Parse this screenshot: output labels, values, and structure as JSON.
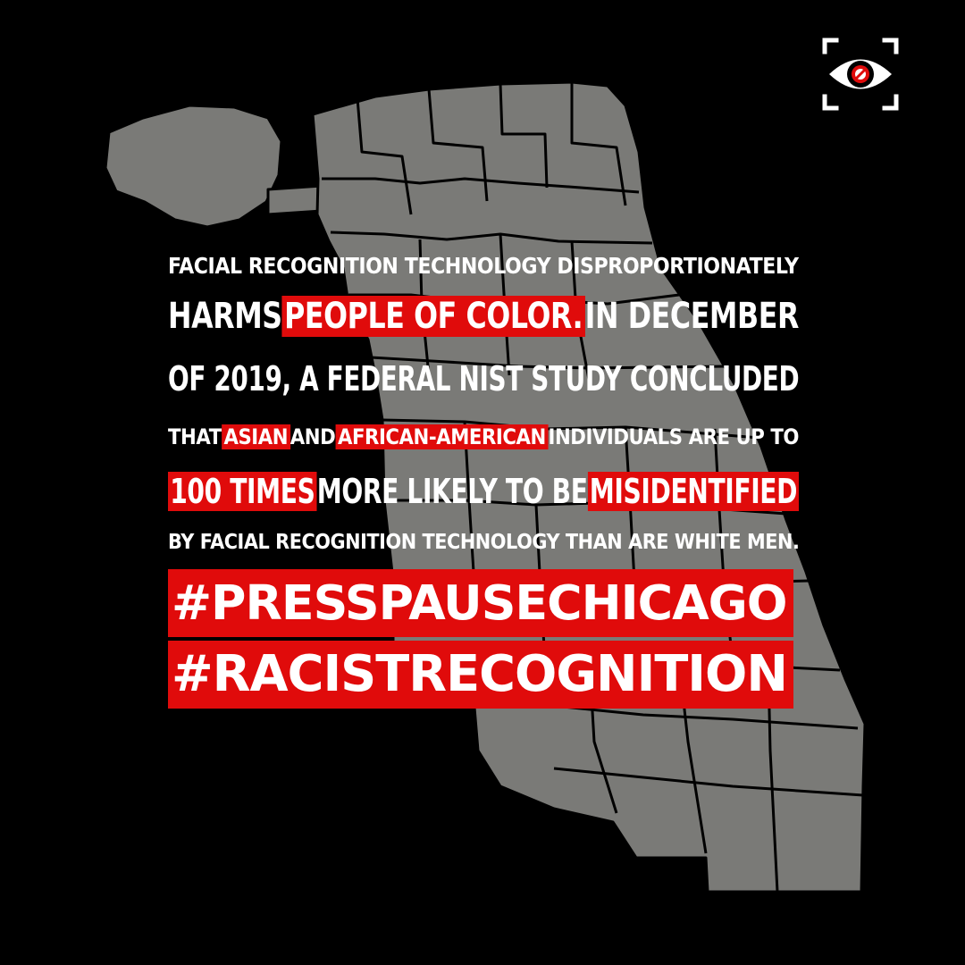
{
  "logo": {
    "icon": "blocked-eye-icon",
    "colors": {
      "frame": "#ffffff",
      "pupil": "#e00b0b"
    }
  },
  "map": {
    "fill": "#7a7a77",
    "stroke": "#000000"
  },
  "statement": {
    "l1": {
      "a": "FACIAL RECOGNITION TECHNOLOGY DISPROPORTIONATELY"
    },
    "l2": {
      "a": "HARMS",
      "hl": "PEOPLE OF COLOR.",
      "b": "IN DECEMBER"
    },
    "l3": {
      "a": "OF 2019, A FEDERAL NIST STUDY CONCLUDED"
    },
    "l4": {
      "a": "THAT",
      "hl1": "ASIAN",
      "b": "AND",
      "hl2": "AFRICAN-AMERICAN",
      "c": "INDIVIDUALS ARE UP TO"
    },
    "l5": {
      "hl1": "100 TIMES",
      "a": "MORE LIKELY TO BE",
      "hl2": "MISIDENTIFIED"
    },
    "l6": {
      "a": "BY FACIAL RECOGNITION TECHNOLOGY THAN ARE WHITE MEN."
    }
  },
  "hashtags": [
    "#PRESSPAUSECHICAGO",
    "#RACISTRECOGNITION"
  ],
  "colors": {
    "background": "#000000",
    "highlight": "#e00b0b",
    "text": "#ffffff"
  }
}
